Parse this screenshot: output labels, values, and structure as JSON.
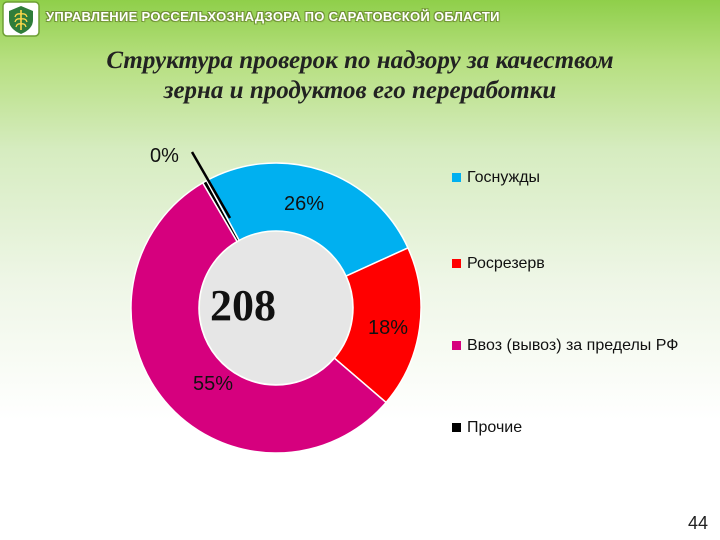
{
  "header": {
    "organization": "Управление Россельхознадзора по Саратовской области"
  },
  "title_line1": "Структура проверок по надзору за качеством",
  "title_line2": "зерна и продуктов его переработки",
  "chart_data": {
    "type": "pie",
    "donut": true,
    "center_label": "208",
    "slices": [
      {
        "name": "Госнужды",
        "label": "26%",
        "value": 26,
        "color": "#00b0f0"
      },
      {
        "name": "Росрезерв",
        "label": "18%",
        "value": 18,
        "color": "#ff0000"
      },
      {
        "name": "Ввоз (вывоз) за пределы РФ",
        "label": "55%",
        "value": 55,
        "color": "#d6007e"
      },
      {
        "name": "Прочие",
        "label": "0%",
        "value": 0.5,
        "color": "#000000"
      }
    ],
    "legend_position": "right"
  },
  "page_number": "44"
}
